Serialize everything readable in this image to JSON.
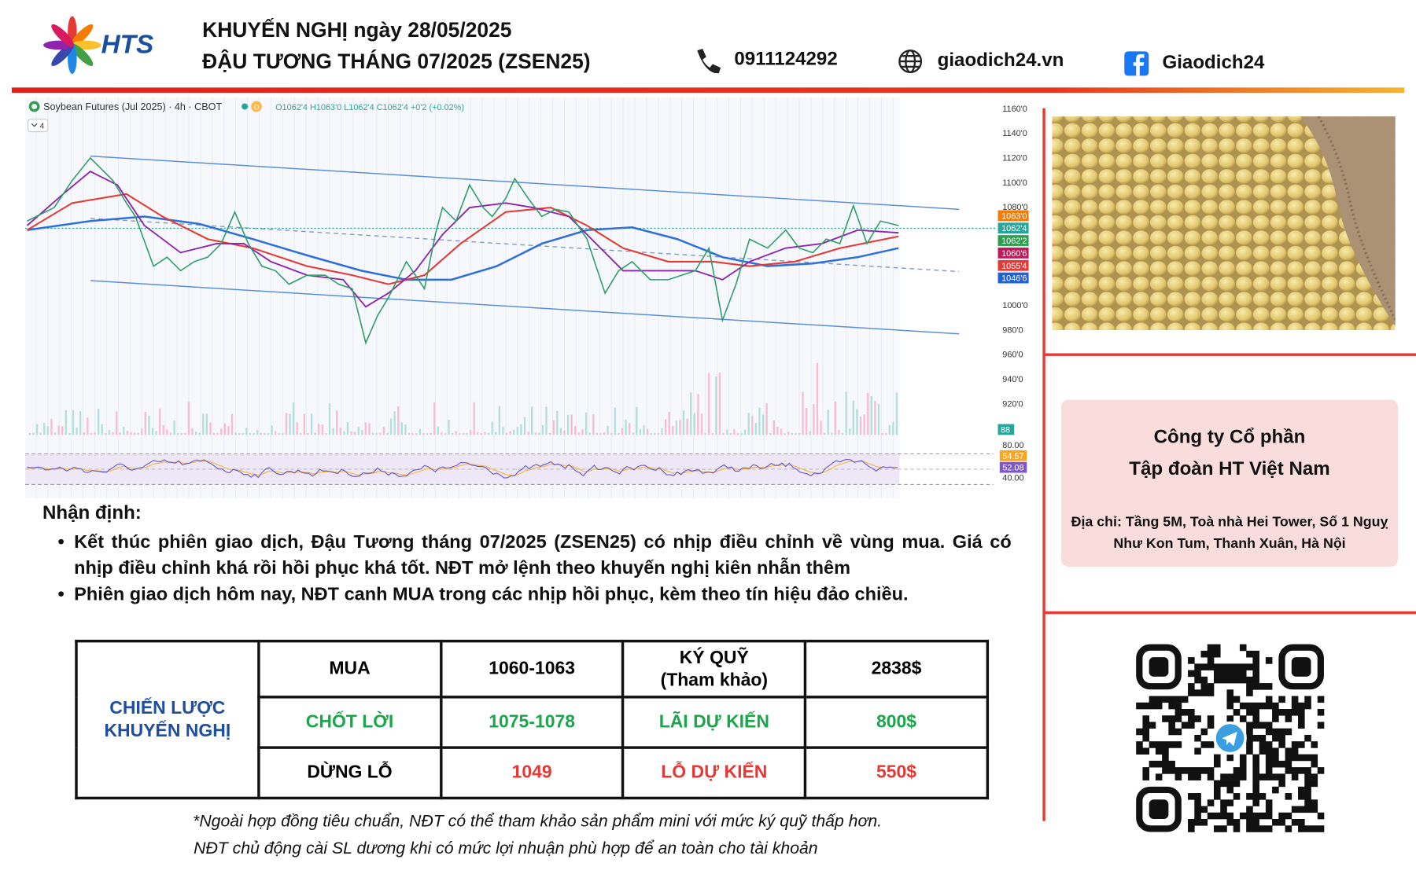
{
  "header": {
    "logo": "HTS",
    "title": "KHUYẾN NGHỊ ngày 28/05/2025",
    "subtitle": "ĐẬU TƯƠNG THÁNG 07/2025 (ZSEN25)",
    "phone": "0911124292",
    "website": "giaodich24.vn",
    "facebook": "Giaodich24"
  },
  "chart_image": {
    "title": "Soybean Futures (Jul 2025) · 4h · CBOT",
    "badge": "D",
    "ohlc": "O1062'4 H1063'0 L1062'4 C1062'4 +0'2 (+0.02%)",
    "indicator": "4",
    "price_labels": [
      "1160'0",
      "1140'0",
      "1120'0",
      "1100'0",
      "1080'0",
      "1000'0",
      "980'0",
      "960'0",
      "940'0",
      "920'0"
    ],
    "price_tags": [
      {
        "label": "1063'0",
        "color": "#f57c00"
      },
      {
        "label": "1062'4",
        "color": "#26a69a"
      },
      {
        "label": "1062'2",
        "color": "#2e9e4f"
      },
      {
        "label": "1060'6",
        "color": "#c2185b"
      },
      {
        "label": "1055'4",
        "color": "#e53935"
      },
      {
        "label": "1046'6",
        "color": "#1e63d6"
      }
    ],
    "volume_tag": "88",
    "rsi_labels": [
      {
        "label": "80.00"
      },
      {
        "label": "54.57",
        "color": "#f5a623"
      },
      {
        "label": "52.08",
        "color": "#7e57c2"
      },
      {
        "label": "40.00"
      }
    ]
  },
  "company": {
    "name_line1": "Công ty Cổ phần",
    "name_line2": "Tập đoàn HT Việt Nam",
    "address": "Địa chỉ: Tầng 5M, Toà nhà Hei Tower, Số 1 Nguỵ Như Kon Tum, Thanh Xuân, Hà Nội"
  },
  "analysis": {
    "heading": "Nhận định:",
    "bullets": [
      "Kết thúc phiên giao dịch, Đậu Tương tháng 07/2025 (ZSEN25) có nhịp điều chỉnh về vùng mua. Giá có nhịp điều chỉnh khá rồi hồi phục khá tốt. NĐT mở lệnh theo khuyến nghị kiên nhẫn thêm",
      "Phiên giao dịch hôm nay, NĐT canh MUA trong các nhịp hồi phục, kèm theo tín hiệu đảo chiều."
    ]
  },
  "table": {
    "strategy": "CHIẾN LƯỢC\nKHUYẾN NGHỊ",
    "rows": [
      [
        "MUA",
        "1060-1063",
        "KÝ QUỸ\n(Tham khảo)",
        "2838$"
      ],
      [
        "CHỐT LỜI",
        "1075-1078",
        "LÃI DỰ KIẾN",
        "800$"
      ],
      [
        "DỪNG LỖ",
        "1049",
        "LỖ DỰ KIẾN",
        "550$"
      ]
    ]
  },
  "footnotes": [
    "*Ngoài hợp đồng tiêu chuẩn, NĐT có thể tham khảo sản phẩm mini với mức ký quỹ thấp hơn.",
    "NĐT chủ động cài SL dương khi có mức lợi nhuận phù hợp để an toàn cho tài khoản"
  ]
}
